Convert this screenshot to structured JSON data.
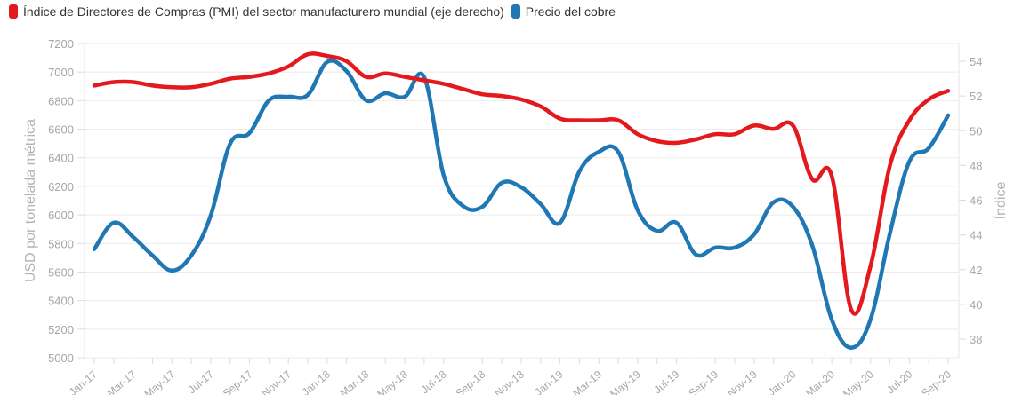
{
  "chart_data": {
    "type": "line",
    "title": "",
    "legend_placement": "top-left",
    "legend": [
      {
        "name": "Índice de Directores de Compras (PMI) del sector manufacturero mundial (eje derecho)",
        "color": "#e3191e"
      },
      {
        "name": "Precio del cobre",
        "color": "#1f77b4"
      }
    ],
    "ylabel": "USD por tonelada métrica",
    "y2label": "Índice",
    "ylim": [
      5000,
      7200
    ],
    "y2lim": [
      37.1,
      55.0
    ],
    "yticks": [
      "5000",
      "5200",
      "5400",
      "5600",
      "5800",
      "6000",
      "6200",
      "6400",
      "6600",
      "6800",
      "7000",
      "7200"
    ],
    "y2ticks": [
      "38",
      "40",
      "42",
      "44",
      "46",
      "48",
      "50",
      "52",
      "54"
    ],
    "grid": true,
    "x": [
      "Jan-17",
      "Feb-17",
      "Mar-17",
      "Apr-17",
      "May-17",
      "Jun-17",
      "Jul-17",
      "Aug-17",
      "Sep-17",
      "Oct-17",
      "Nov-17",
      "Dec-17",
      "Jan-18",
      "Feb-18",
      "Mar-18",
      "Apr-18",
      "May-18",
      "Jun-18",
      "Jul-18",
      "Aug-18",
      "Sep-18",
      "Oct-18",
      "Nov-18",
      "Dec-18",
      "Jan-19",
      "Feb-19",
      "Mar-19",
      "Apr-19",
      "May-19",
      "Jun-19",
      "Jul-19",
      "Aug-19",
      "Sep-19",
      "Oct-19",
      "Nov-19",
      "Dec-19",
      "Jan-20",
      "Feb-20",
      "Mar-20",
      "Apr-20",
      "May-20",
      "Jun-20",
      "Jul-20",
      "Aug-20",
      "Sep-20"
    ],
    "xtick_labels": [
      "Jan-17",
      "Mar-17",
      "May-17",
      "Jul-17",
      "Sep-17",
      "Nov-17",
      "Jan-18",
      "Mar-18",
      "May-18",
      "Jul-18",
      "Sep-18",
      "Nov-18",
      "Jan-19",
      "Mar-19",
      "May-19",
      "Jul-19",
      "Sep-19",
      "Nov-19",
      "Jan-20",
      "Mar-20",
      "May-20",
      "Jul-20",
      "Sep-20"
    ],
    "series": [
      {
        "name": "Índice de Directores de Compras (PMI) del sector manufacturero mundial (eje derecho)",
        "axis": "right",
        "color": "#e3191e",
        "values": [
          52.6,
          52.8,
          52.8,
          52.6,
          52.5,
          52.5,
          52.7,
          53.0,
          53.1,
          53.3,
          53.7,
          54.4,
          54.3,
          54.0,
          53.1,
          53.3,
          53.1,
          52.9,
          52.7,
          52.4,
          52.1,
          52.0,
          51.8,
          51.4,
          50.7,
          50.6,
          50.6,
          50.6,
          49.8,
          49.4,
          49.3,
          49.5,
          49.8,
          49.8,
          50.3,
          50.1,
          50.3,
          47.2,
          47.4,
          39.7,
          42.2,
          48.0,
          50.6,
          51.8,
          52.3
        ]
      },
      {
        "name": "Precio del cobre",
        "axis": "left",
        "color": "#1f77b4",
        "values": [
          5760,
          5945,
          5846,
          5716,
          5610,
          5716,
          5995,
          6498,
          6573,
          6802,
          6827,
          6840,
          7070,
          7007,
          6802,
          6852,
          6827,
          6964,
          6280,
          6063,
          6057,
          6225,
          6194,
          6076,
          5945,
          6306,
          6442,
          6442,
          6032,
          5888,
          5945,
          5722,
          5771,
          5771,
          5864,
          6088,
          6057,
          5784,
          5268,
          5070,
          5268,
          5871,
          6374,
          6467,
          6697
        ]
      }
    ]
  }
}
